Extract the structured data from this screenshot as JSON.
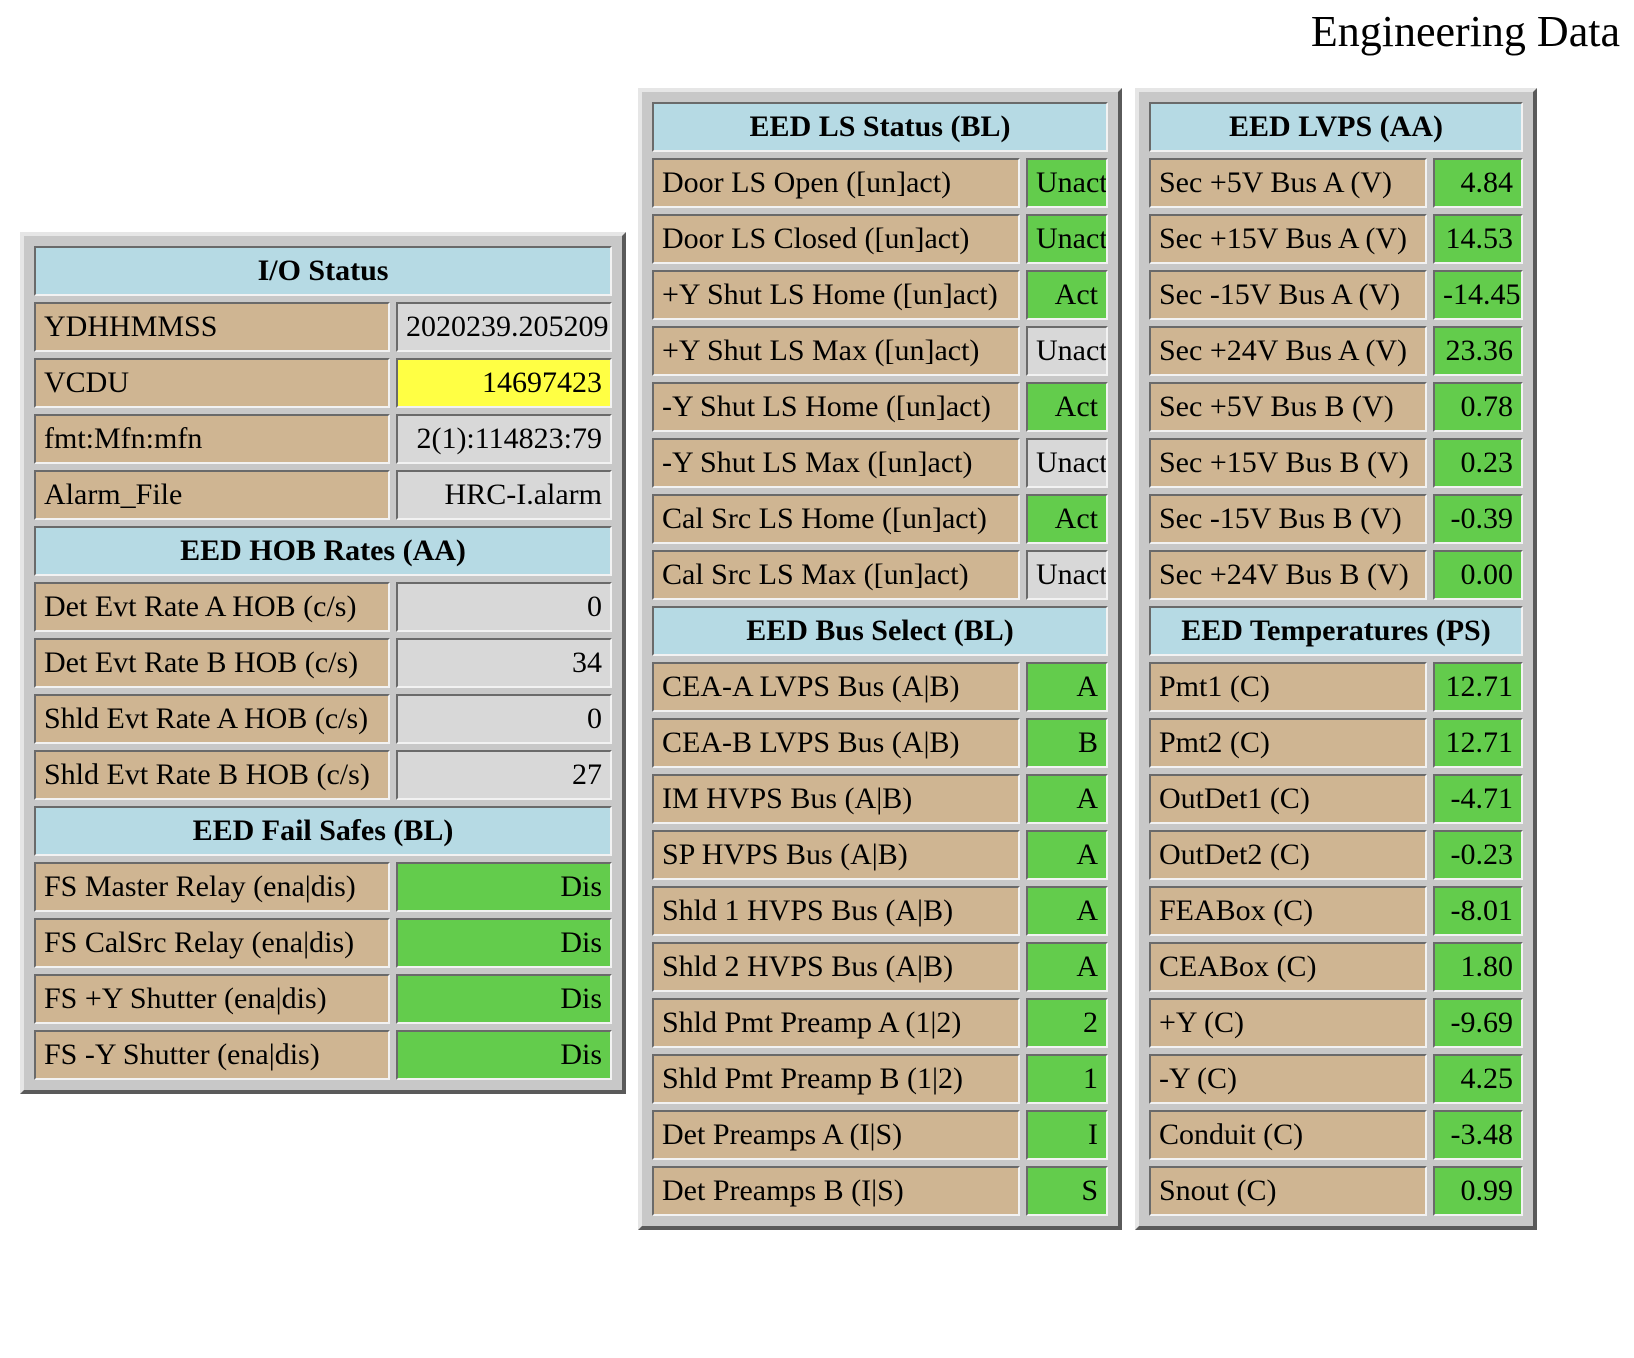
{
  "page_title": "Engineering Data",
  "colors": {
    "header": "#b6dae4",
    "label": "#cfb592",
    "ok_green": "#63cc4c",
    "neutral_grey": "#d8d8d8",
    "highlight_yellow": "#ffff44"
  },
  "io_status": {
    "title": "I/O Status",
    "rows": [
      {
        "label": "YDHHMMSS",
        "value": "2020239.205209",
        "color": "grey"
      },
      {
        "label": "VCDU",
        "value": "14697423",
        "color": "yellow"
      },
      {
        "label": "fmt:Mfn:mfn",
        "value": "2(1):114823:79",
        "color": "grey"
      },
      {
        "label": "Alarm_File",
        "value": "HRC-I.alarm",
        "color": "grey"
      }
    ]
  },
  "hob_rates": {
    "title": "EED HOB Rates (AA)",
    "rows": [
      {
        "label": "Det Evt Rate A HOB (c/s)",
        "value": "0",
        "color": "grey"
      },
      {
        "label": "Det Evt Rate B HOB (c/s)",
        "value": "34",
        "color": "grey"
      },
      {
        "label": "Shld Evt Rate A HOB (c/s)",
        "value": "0",
        "color": "grey"
      },
      {
        "label": "Shld Evt Rate B HOB (c/s)",
        "value": "27",
        "color": "grey"
      }
    ]
  },
  "fail_safes": {
    "title": "EED Fail Safes (BL)",
    "rows": [
      {
        "label": "FS Master Relay (ena|dis)",
        "value": "Dis",
        "color": "green"
      },
      {
        "label": "FS CalSrc Relay (ena|dis)",
        "value": "Dis",
        "color": "green"
      },
      {
        "label": "FS +Y Shutter (ena|dis)",
        "value": "Dis",
        "color": "green"
      },
      {
        "label": "FS -Y Shutter (ena|dis)",
        "value": "Dis",
        "color": "green"
      }
    ]
  },
  "ls_status": {
    "title": "EED LS Status (BL)",
    "rows": [
      {
        "label": "Door LS Open ([un]act)",
        "value": "Unact",
        "color": "green"
      },
      {
        "label": "Door LS Closed ([un]act)",
        "value": "Unact",
        "color": "green"
      },
      {
        "label": "+Y Shut LS Home ([un]act)",
        "value": "Act",
        "color": "green"
      },
      {
        "label": "+Y Shut LS Max ([un]act)",
        "value": "Unact",
        "color": "grey"
      },
      {
        "label": "-Y Shut LS Home ([un]act)",
        "value": "Act",
        "color": "green"
      },
      {
        "label": "-Y Shut LS Max ([un]act)",
        "value": "Unact",
        "color": "grey"
      },
      {
        "label": "Cal Src LS Home ([un]act)",
        "value": "Act",
        "color": "green"
      },
      {
        "label": "Cal Src LS Max ([un]act)",
        "value": "Unact",
        "color": "grey"
      }
    ]
  },
  "bus_select": {
    "title": "EED Bus Select (BL)",
    "rows": [
      {
        "label": "CEA-A LVPS Bus (A|B)",
        "value": "A",
        "color": "green"
      },
      {
        "label": "CEA-B LVPS Bus (A|B)",
        "value": "B",
        "color": "green"
      },
      {
        "label": "IM HVPS Bus (A|B)",
        "value": "A",
        "color": "green"
      },
      {
        "label": "SP HVPS Bus (A|B)",
        "value": "A",
        "color": "green"
      },
      {
        "label": "Shld 1 HVPS Bus (A|B)",
        "value": "A",
        "color": "green"
      },
      {
        "label": "Shld 2 HVPS Bus (A|B)",
        "value": "A",
        "color": "green"
      },
      {
        "label": "Shld Pmt Preamp A (1|2)",
        "value": "2",
        "color": "green"
      },
      {
        "label": "Shld Pmt Preamp B (1|2)",
        "value": "1",
        "color": "green"
      },
      {
        "label": "Det Preamps A (I|S)",
        "value": "I",
        "color": "green"
      },
      {
        "label": "Det Preamps B (I|S)",
        "value": "S",
        "color": "green"
      }
    ]
  },
  "lvps": {
    "title": "EED LVPS (AA)",
    "rows": [
      {
        "label": "Sec +5V Bus A (V)",
        "value": "4.84",
        "color": "green"
      },
      {
        "label": "Sec +15V Bus A (V)",
        "value": "14.53",
        "color": "green"
      },
      {
        "label": "Sec -15V Bus A (V)",
        "value": "-14.45",
        "color": "green"
      },
      {
        "label": "Sec +24V Bus A (V)",
        "value": "23.36",
        "color": "green"
      },
      {
        "label": "Sec +5V Bus B (V)",
        "value": "0.78",
        "color": "green"
      },
      {
        "label": "Sec +15V Bus B (V)",
        "value": "0.23",
        "color": "green"
      },
      {
        "label": "Sec -15V Bus B (V)",
        "value": "-0.39",
        "color": "green"
      },
      {
        "label": "Sec +24V Bus B (V)",
        "value": "0.00",
        "color": "green"
      }
    ]
  },
  "temperatures": {
    "title": "EED Temperatures (PS)",
    "rows": [
      {
        "label": "Pmt1 (C)",
        "value": "12.71",
        "color": "green"
      },
      {
        "label": "Pmt2 (C)",
        "value": "12.71",
        "color": "green"
      },
      {
        "label": "OutDet1 (C)",
        "value": "-4.71",
        "color": "green"
      },
      {
        "label": "OutDet2 (C)",
        "value": "-0.23",
        "color": "green"
      },
      {
        "label": "FEABox (C)",
        "value": "-8.01",
        "color": "green"
      },
      {
        "label": "CEABox (C)",
        "value": "1.80",
        "color": "green"
      },
      {
        "label": "+Y (C)",
        "value": "-9.69",
        "color": "green"
      },
      {
        "label": "-Y (C)",
        "value": "4.25",
        "color": "green"
      },
      {
        "label": "Conduit (C)",
        "value": "-3.48",
        "color": "green"
      },
      {
        "label": "Snout (C)",
        "value": "0.99",
        "color": "green"
      }
    ]
  }
}
